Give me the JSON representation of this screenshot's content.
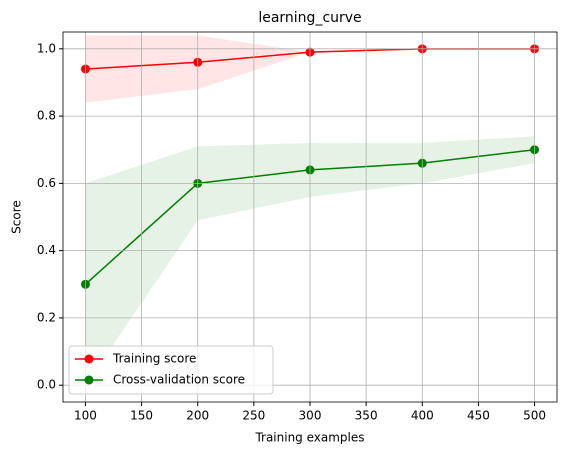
{
  "chart_data": {
    "type": "line",
    "title": "learning_curve",
    "x_label": "Training examples",
    "y_label": "Score",
    "x": [
      100,
      200,
      300,
      400,
      500
    ],
    "series": [
      {
        "name": "Training score",
        "color": "#ff0000",
        "values": [
          0.94,
          0.96,
          0.99,
          1.0,
          1.0
        ],
        "lower": [
          0.84,
          0.88,
          0.99,
          1.0,
          1.0
        ],
        "upper": [
          1.04,
          1.04,
          0.99,
          1.0,
          1.0
        ]
      },
      {
        "name": "Cross-validation score",
        "color": "#008000",
        "values": [
          0.3,
          0.6,
          0.64,
          0.66,
          0.7
        ],
        "lower": [
          0.0,
          0.49,
          0.56,
          0.6,
          0.66
        ],
        "upper": [
          0.6,
          0.71,
          0.72,
          0.72,
          0.74
        ]
      }
    ],
    "xlim": [
      80,
      520
    ],
    "ylim": [
      -0.05,
      1.05
    ],
    "xticks": [
      100,
      150,
      200,
      250,
      300,
      350,
      400,
      450,
      500
    ],
    "yticks": [
      {
        "value": 0,
        "label": "0.0"
      },
      0.2,
      0.4,
      0.6,
      0.8,
      {
        "value": 1,
        "label": "1.0"
      }
    ],
    "grid": true,
    "legend": "lower left"
  }
}
